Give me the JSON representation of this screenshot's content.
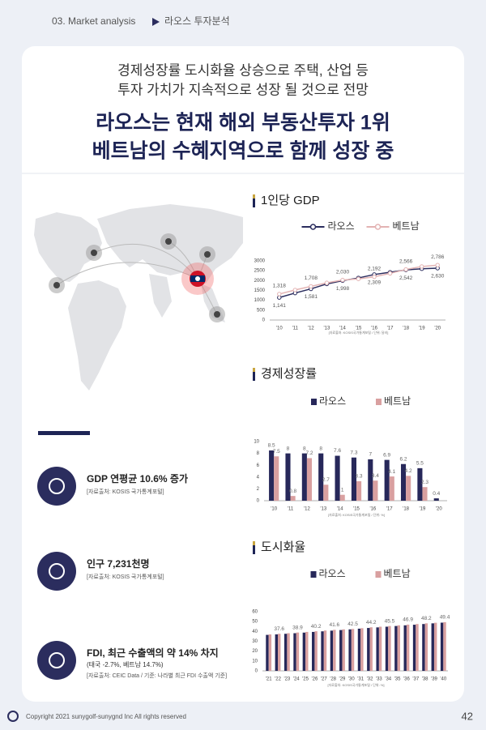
{
  "header": {
    "section": "03. Market analysis",
    "page_title": "라오스 투자분석"
  },
  "headline": {
    "lines": [
      "경제성장률 도시화율 상승으로 주택, 산업 등",
      "투자 가치가 지속적으로 성장 될 것으로 전망"
    ],
    "bold_lines": [
      "라오스는 현재 해외 부동산투자 1위",
      "베트남의 수혜지역으로 함께 성장 중"
    ]
  },
  "stats": [
    {
      "title": "GDP 연평균 10.6% 증가",
      "source": "[자료출처: KOSIS 국가통계포털]"
    },
    {
      "title": "인구 7,231천명",
      "source": "[자료출처: KOSIS 국가통계포털]"
    },
    {
      "title": "FDI, 최근 수출액의 약 14% 차지",
      "note": "(태국 -2.7%, 베트남 14.7%)",
      "source": "[자료출처: CEIC Data / 기준: 나라별 최근 FDI 수출액 기준]"
    }
  ],
  "chart_data": [
    {
      "type": "line",
      "title": "1인당 GDP",
      "legend": "top",
      "categories": [
        "'10",
        "'11",
        "'12",
        "'13",
        "'14",
        "'15",
        "'16",
        "'17",
        "'18",
        "'19",
        "'20"
      ],
      "series": [
        {
          "name": "라오스",
          "color": "#2b2d5e",
          "values": [
            1141,
            1370,
            1581,
            1830,
            1998,
            2134,
            2309,
            2424,
            2542,
            2600,
            2630
          ],
          "value_labels": [
            "1,141",
            null,
            "1,581",
            null,
            "1,998",
            null,
            "2,309",
            null,
            "2,542",
            null,
            "2,630"
          ]
        },
        {
          "name": "베트남",
          "color": "#e3b3b3",
          "values": [
            1318,
            1525,
            1708,
            1886,
            2030,
            2085,
            2192,
            2366,
            2566,
            2715,
            2786
          ],
          "value_labels": [
            "1,318",
            null,
            "1,708",
            null,
            "2,030",
            null,
            "2,192",
            null,
            "2,566",
            null,
            "2,786"
          ]
        }
      ],
      "ylim": [
        0,
        3000
      ],
      "yticks": [
        0,
        500,
        1000,
        1500,
        2000,
        2500,
        3000
      ],
      "grid": false,
      "source": "[자료출처: KOSIS국가통계포털 / 단위: 달러]"
    },
    {
      "type": "bar",
      "title": "경제성장률",
      "legend": "top",
      "categories": [
        "'10",
        "'11",
        "'12",
        "'13",
        "'14",
        "'15",
        "'16",
        "'17",
        "'18",
        "'19",
        "'20"
      ],
      "series": [
        {
          "name": "라오스",
          "color": "#27285a",
          "values": [
            8.5,
            8,
            8,
            8,
            7.6,
            7.3,
            7,
            6.9,
            6.2,
            5.5,
            0.4
          ]
        },
        {
          "name": "베트남",
          "color": "#d9a0a0",
          "values": [
            7.5,
            0.8,
            7.2,
            2.7,
            1,
            3.3,
            3.4,
            4.1,
            4.2,
            2.3,
            null
          ]
        }
      ],
      "ylim": [
        0,
        10
      ],
      "yticks": [
        0,
        2,
        4,
        6,
        8,
        10
      ],
      "grid": false,
      "source": "[자료출처: KOSIS국가통계포털 / 단위: %]"
    },
    {
      "type": "bar",
      "title": "도시화율",
      "legend": "top",
      "categories": [
        "'21",
        "'22",
        "'23",
        "'24",
        "'25",
        "'26",
        "'27",
        "'28",
        "'29",
        "'30",
        "'31",
        "'32",
        "'33",
        "'34",
        "'35",
        "'36",
        "'37",
        "'38",
        "'39",
        "'40"
      ],
      "series": [
        {
          "name": "라오스",
          "color": "#27285a",
          "values": [
            36.5,
            37.0,
            37.6,
            38.2,
            38.8,
            39.5,
            40.1,
            40.8,
            41.4,
            42.1,
            42.8,
            43.5,
            44.1,
            44.8,
            45.5,
            46.2,
            46.8,
            47.5,
            48.2,
            48.9
          ]
        },
        {
          "name": "베트남",
          "color": "#d9a0a0",
          "values": [
            37.0,
            37.6,
            38.2,
            38.9,
            39.5,
            40.2,
            40.9,
            41.6,
            42.1,
            42.5,
            43.3,
            44.2,
            44.8,
            45.5,
            46.2,
            46.9,
            47.5,
            48.2,
            48.8,
            49.4
          ],
          "value_labels": [
            null,
            "37.6",
            null,
            "38.9",
            null,
            "40.2",
            null,
            "41.6",
            null,
            "42.5",
            null,
            "44.2",
            null,
            "45.5",
            null,
            "46.9",
            null,
            "48.2",
            null,
            "49.4"
          ]
        }
      ],
      "ylim": [
        0,
        60
      ],
      "yticks": [
        0,
        10,
        20,
        30,
        40,
        50,
        60
      ],
      "grid": false,
      "source": "[자료출처: KOSIS국가통계포털 / 단위: %]"
    }
  ],
  "footer": {
    "copyright": "Copyright 2021 sunygolf-sunygnd Inc All rights reserved",
    "page": "42"
  }
}
